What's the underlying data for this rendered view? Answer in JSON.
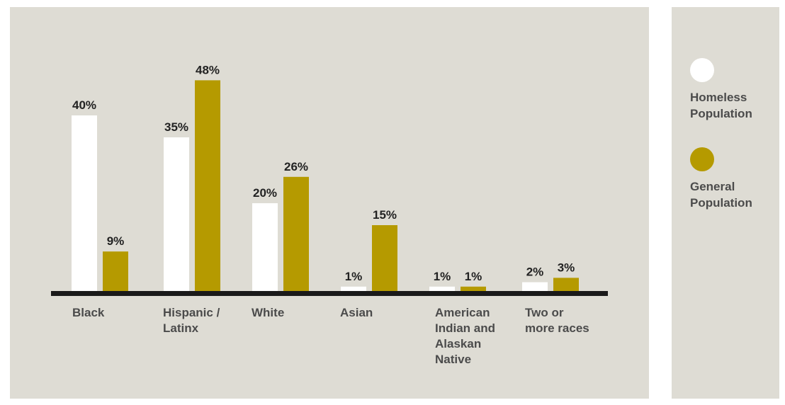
{
  "colors": {
    "homeless": "#ffffff",
    "general": "#b59a00",
    "panel": "#dedcd4",
    "baseline": "#1a1a1a"
  },
  "legend": {
    "items": [
      {
        "label": "Homeless Population",
        "color": "#ffffff"
      },
      {
        "label": "General Population",
        "color": "#b59a00"
      }
    ]
  },
  "chart_data": {
    "type": "bar",
    "categories": [
      "Black",
      "Hispanic / Latinx",
      "White",
      "Asian",
      "American Indian and Alaskan Native",
      "Two or more races"
    ],
    "series": [
      {
        "name": "Homeless Population",
        "values": [
          40,
          35,
          20,
          1,
          1,
          2
        ],
        "labels": [
          "40%",
          "35%",
          "20%",
          "1%",
          "1%",
          "2%"
        ]
      },
      {
        "name": "General Population",
        "values": [
          9,
          48,
          26,
          15,
          1,
          3
        ],
        "labels": [
          "9%",
          "48%",
          "26%",
          "15%",
          "1%",
          "3%"
        ]
      }
    ],
    "title": "",
    "xlabel": "",
    "ylabel": "",
    "ylim": [
      0,
      50
    ],
    "grid": false,
    "legend_position": "right"
  }
}
